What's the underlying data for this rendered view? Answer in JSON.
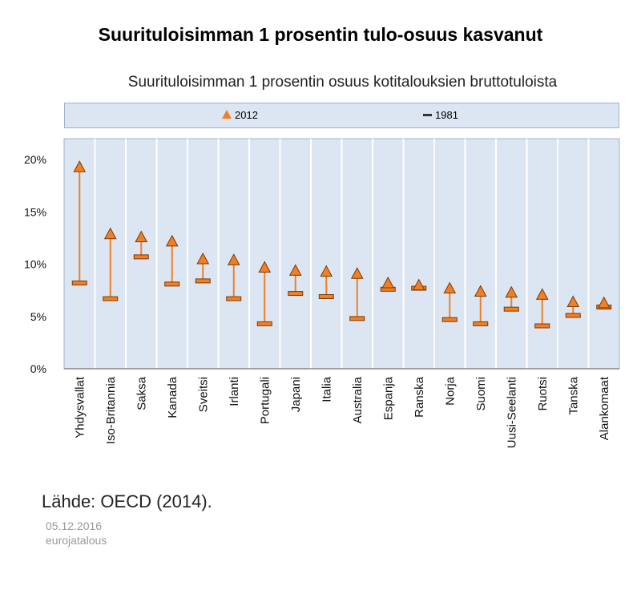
{
  "header": {
    "title": "Suurituloisimman 1 prosentin tulo-osuus kasvanut"
  },
  "footer": {
    "source": "Lähde: OECD (2014).",
    "date": "05.12.2016",
    "publisher": "eurojatalous"
  },
  "colors": {
    "plot_bg": "#dce6f2",
    "marker": "#f07f26",
    "marker_edge": "#7a3a06",
    "bar_1981": "#f07f26"
  },
  "chart_data": {
    "type": "dumbbell",
    "title": "Suurituloisimman 1 prosentin osuus kotitalouksien bruttotuloista",
    "xlabel": "",
    "ylabel": "",
    "ylim": [
      0,
      22
    ],
    "yticks": [
      0,
      5,
      10,
      15,
      20
    ],
    "ytick_labels": [
      "0%",
      "5%",
      "10%",
      "15%",
      "20%"
    ],
    "legend": [
      "2012",
      "1981"
    ],
    "legend_position": "top",
    "categories": [
      "Yhdysvallat",
      "Iso-Britannia",
      "Saksa",
      "Kanada",
      "Sveitsi",
      "Irlanti",
      "Portugali",
      "Japani",
      "Italia",
      "Australia",
      "Espanja",
      "Ranska",
      "Norja",
      "Suomi",
      "Uusi-Seelanti",
      "Ruotsi",
      "Tanska",
      "Alankomaat"
    ],
    "series": [
      {
        "name": "2012",
        "marker": "triangle",
        "values": [
          19.3,
          12.9,
          12.6,
          12.2,
          10.5,
          10.4,
          9.7,
          9.4,
          9.3,
          9.1,
          8.2,
          8.0,
          7.7,
          7.4,
          7.3,
          7.1,
          6.4,
          6.3
        ]
      },
      {
        "name": "1981",
        "marker": "dash",
        "values": [
          8.2,
          6.7,
          10.7,
          8.1,
          8.4,
          6.7,
          4.3,
          7.2,
          6.9,
          4.8,
          7.6,
          7.7,
          4.7,
          4.3,
          5.7,
          4.1,
          5.1,
          5.9
        ]
      }
    ]
  }
}
